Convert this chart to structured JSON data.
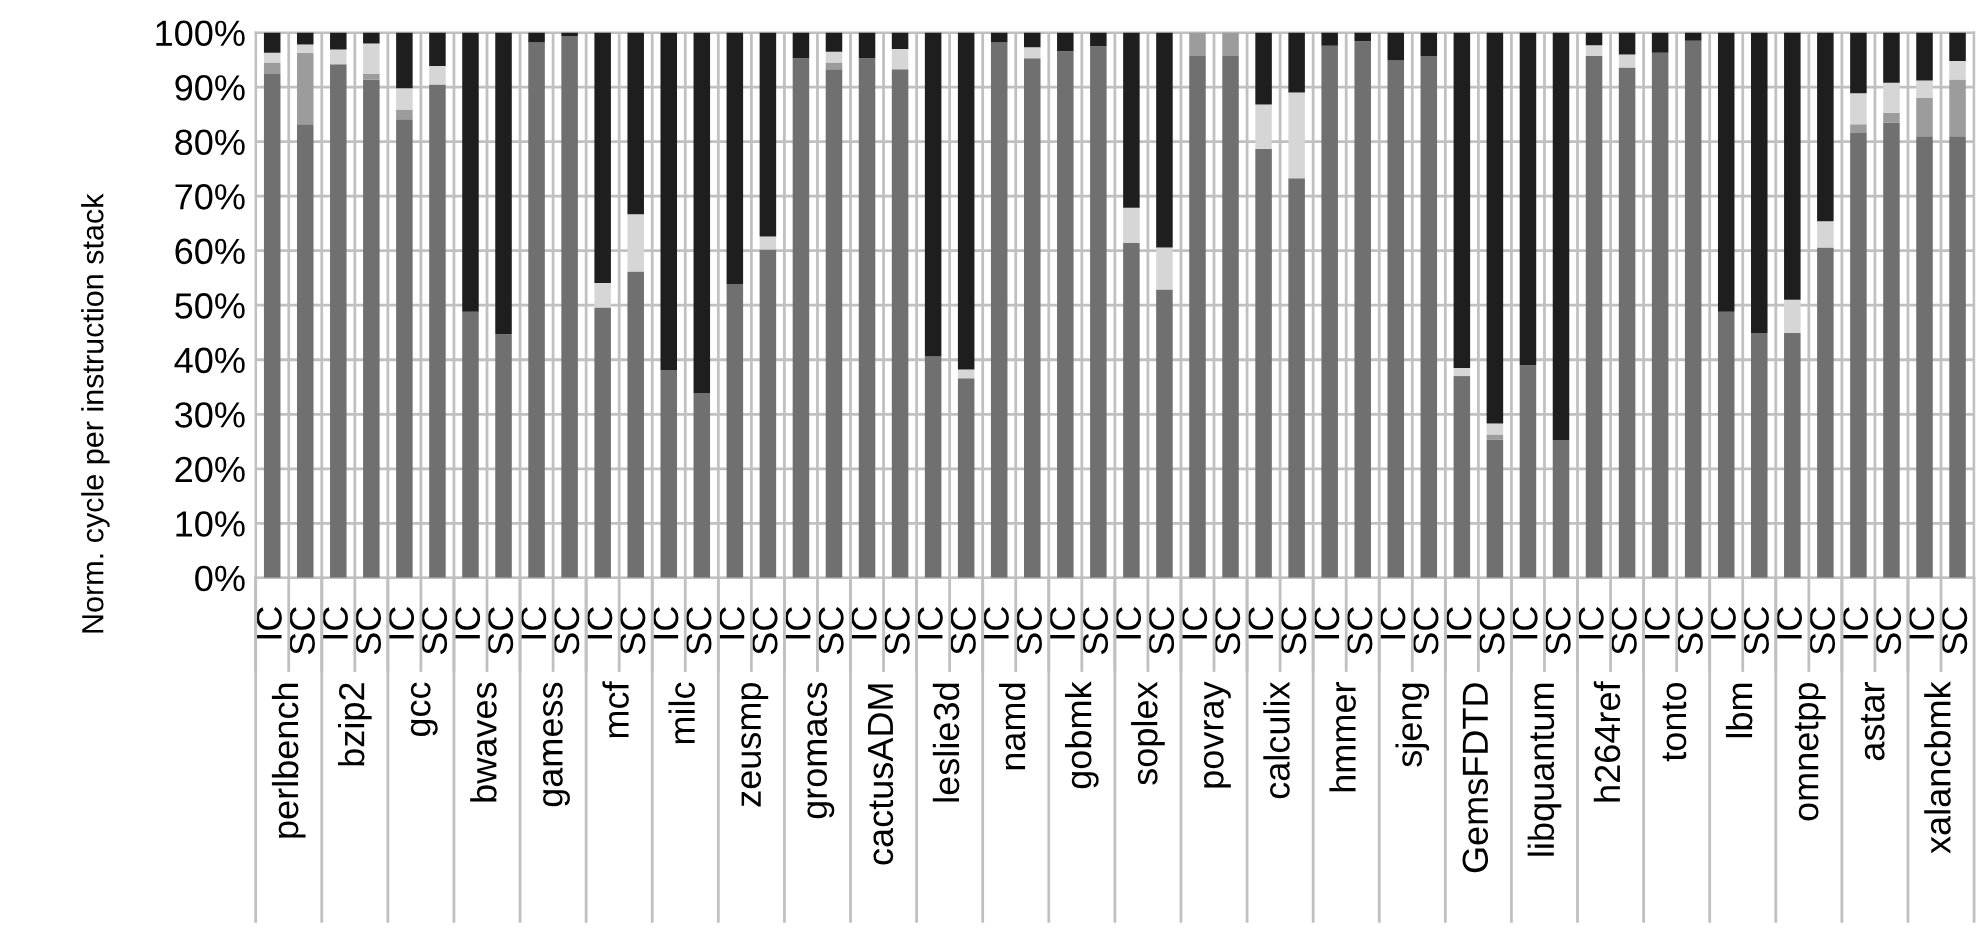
{
  "chart_data": {
    "type": "bar",
    "stacked": true,
    "ylabel": "Norm. cycle per instruction stack",
    "categories": [
      "IC",
      "SC",
      "IC",
      "SC",
      "IC",
      "SC",
      "IC",
      "SC",
      "IC",
      "SC",
      "IC",
      "SC",
      "IC",
      "SC",
      "IC",
      "SC",
      "IC",
      "SC",
      "IC",
      "SC",
      "IC",
      "SC",
      "IC",
      "SC",
      "IC",
      "SC",
      "IC",
      "SC",
      "IC",
      "SC",
      "IC",
      "SC",
      "IC",
      "SC",
      "IC",
      "SC",
      "IC",
      "SC",
      "IC",
      "SC",
      "IC",
      "SC",
      "IC",
      "SC",
      "IC",
      "SC",
      "IC",
      "SC",
      "IC",
      "SC",
      "IC",
      "SC"
    ],
    "series": [
      {
        "color": "#707070",
        "values": [
          92.4,
          83.2,
          94.2,
          91.4,
          84.1,
          90.5,
          48.8,
          44.7,
          98.2,
          99.4,
          49.6,
          56.2,
          38.1,
          33.9,
          53.9,
          60.2,
          95.3,
          93.3,
          95.3,
          93.3,
          40.6,
          36.6,
          98.2,
          95.3,
          96.6,
          97.5,
          61.4,
          52.9,
          95.7,
          95.7,
          78.7,
          73.3,
          97.6,
          98.4,
          94.9,
          95.7,
          37.0,
          25.3,
          39.0,
          25.3,
          95.7,
          93.6,
          96.3,
          98.5,
          48.8,
          44.9,
          44.9,
          60.6,
          81.6,
          83.5,
          81.0,
          81.0
        ]
      },
      {
        "color": "#9c9c9c",
        "values": [
          2.1,
          13.1,
          0,
          1.0,
          1.8,
          0,
          0,
          0,
          0,
          0,
          0,
          0,
          0,
          0,
          0,
          0,
          0,
          1.2,
          0,
          0,
          0,
          0,
          0,
          0,
          0,
          0,
          0,
          0,
          4.3,
          4.3,
          0,
          0,
          0,
          0,
          0,
          0,
          0,
          1.0,
          0,
          0,
          0,
          0,
          0,
          0,
          0,
          0,
          0,
          0,
          1.6,
          1.8,
          7.0,
          10.4
        ]
      },
      {
        "color": "#d6d6d6",
        "values": [
          1.8,
          1.5,
          2.7,
          5.6,
          3.9,
          3.4,
          0,
          0,
          0,
          0,
          4.5,
          10.5,
          0,
          0,
          0,
          2.4,
          0,
          2.0,
          0,
          3.7,
          0,
          1.6,
          0,
          2.0,
          0,
          0,
          6.5,
          7.7,
          0,
          0,
          8.1,
          15.7,
          0,
          0,
          0,
          0,
          1.5,
          2.0,
          0,
          0,
          2.0,
          2.4,
          0,
          0,
          0,
          0,
          6.1,
          4.8,
          5.7,
          5.5,
          3.2,
          3.4
        ]
      },
      {
        "color": "#1e1e1e",
        "values": [
          3.7,
          2.2,
          3.1,
          2.0,
          10.2,
          6.1,
          51.2,
          55.3,
          1.8,
          0.6,
          45.9,
          33.3,
          61.9,
          66.1,
          46.1,
          37.4,
          4.7,
          3.5,
          4.7,
          3.0,
          59.4,
          61.8,
          1.8,
          2.7,
          3.4,
          2.5,
          32.1,
          39.4,
          0,
          0,
          13.2,
          11.0,
          2.4,
          1.6,
          5.1,
          4.3,
          61.5,
          71.7,
          61.0,
          74.7,
          2.3,
          4.0,
          3.7,
          1.5,
          51.2,
          55.1,
          49.0,
          34.6,
          11.1,
          9.2,
          8.8,
          5.2
        ]
      }
    ],
    "ylim": [
      0,
      100
    ],
    "yticks": [
      {
        "value": 0,
        "label": "0%"
      },
      {
        "value": 10,
        "label": "10%"
      },
      {
        "value": 20,
        "label": "20%"
      },
      {
        "value": 30,
        "label": "30%"
      },
      {
        "value": 40,
        "label": "40%"
      },
      {
        "value": 50,
        "label": "50%"
      },
      {
        "value": 60,
        "label": "60%"
      },
      {
        "value": 70,
        "label": "70%"
      },
      {
        "value": 80,
        "label": "80%"
      },
      {
        "value": 90,
        "label": "90%"
      },
      {
        "value": 100,
        "label": "100%"
      }
    ],
    "grid": true,
    "annotations": [
      "perlbench",
      "bzip2",
      "gcc",
      "bwaves",
      "gamess",
      "mcf",
      "milc",
      "zeusmp",
      "gromacs",
      "cactusADM",
      "leslie3d",
      "namd",
      "gobmk",
      "soplex",
      "povray",
      "calculix",
      "hmmer",
      "sjeng",
      "GemsFDTD",
      "libquantum",
      "h264ref",
      "tonto",
      "lbm",
      "omnetpp",
      "astar",
      "xalancbmk"
    ]
  }
}
